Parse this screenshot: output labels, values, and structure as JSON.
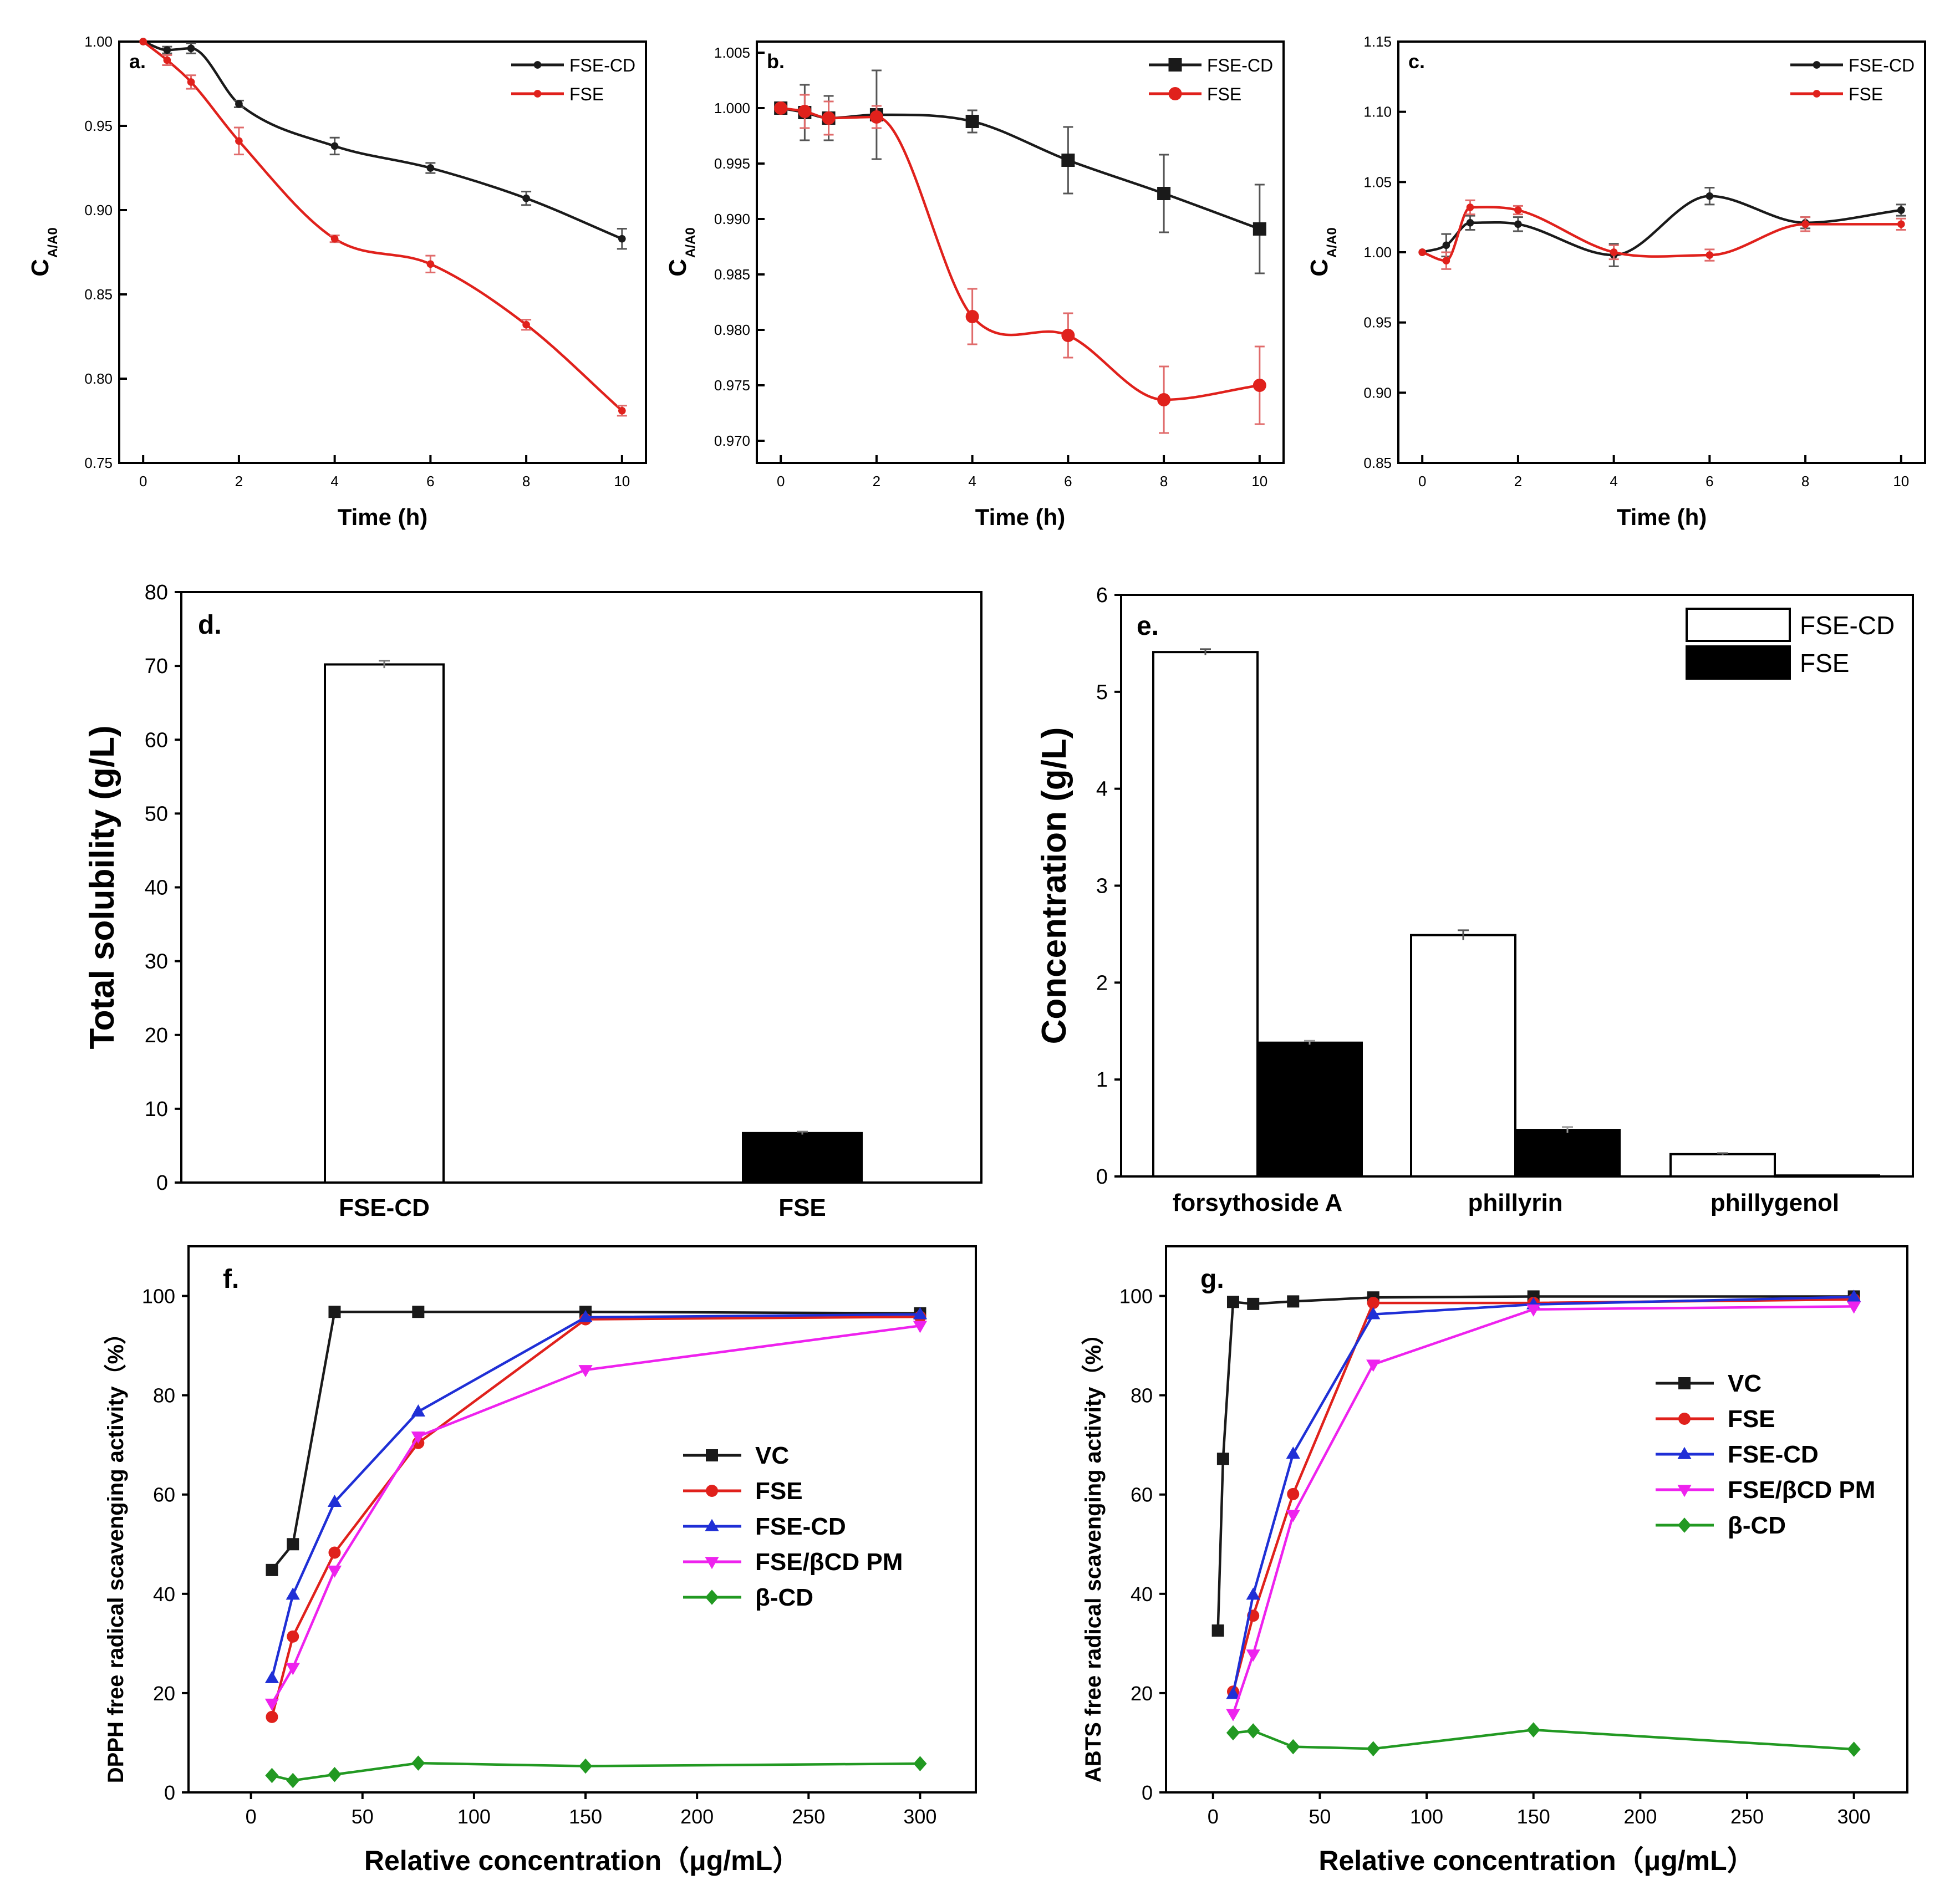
{
  "colors": {
    "black": "#1a1a1a",
    "red": "#e0211c",
    "blue": "#1f2fd6",
    "magenta": "#ee22ee",
    "green": "#229922"
  },
  "chart_data": [
    {
      "id": "a",
      "type": "line",
      "panel_label": "a.",
      "xlabel": "Time (h)",
      "ylabel_main": "C",
      "ylabel_sub": "A/A0",
      "xlim": [
        -0.5,
        10.5
      ],
      "ylim": [
        0.75,
        1.0
      ],
      "xticks": [
        0,
        2,
        4,
        6,
        8,
        10
      ],
      "yticks": [
        0.75,
        0.8,
        0.85,
        0.9,
        0.95,
        1.0
      ],
      "ytick_labels": [
        "0.75",
        "0.80",
        "0.85",
        "0.90",
        "0.95",
        "1.00"
      ],
      "legend_position": "top-right",
      "series": [
        {
          "name": "FSE-CD",
          "color": "black",
          "marker": "dot",
          "x": [
            0,
            0.5,
            1,
            2,
            4,
            6,
            8,
            10
          ],
          "y": [
            1.0,
            0.995,
            0.996,
            0.963,
            0.938,
            0.925,
            0.907,
            0.883
          ],
          "err": [
            0,
            0.002,
            0.003,
            0.002,
            0.005,
            0.003,
            0.004,
            0.006
          ]
        },
        {
          "name": "FSE",
          "color": "red",
          "marker": "dot",
          "x": [
            0,
            0.5,
            1,
            2,
            4,
            6,
            8,
            10
          ],
          "y": [
            1.0,
            0.989,
            0.976,
            0.941,
            0.883,
            0.868,
            0.832,
            0.781
          ],
          "err": [
            0,
            0.003,
            0.004,
            0.008,
            0.002,
            0.005,
            0.003,
            0.003
          ]
        }
      ]
    },
    {
      "id": "b",
      "type": "line",
      "panel_label": "b.",
      "xlabel": "Time (h)",
      "ylabel_main": "C",
      "ylabel_sub": "A/A0",
      "xlim": [
        -0.5,
        10.5
      ],
      "ylim": [
        0.968,
        1.006
      ],
      "xticks": [
        0,
        2,
        4,
        6,
        8,
        10
      ],
      "yticks": [
        0.97,
        0.975,
        0.98,
        0.985,
        0.99,
        0.995,
        1.0,
        1.005
      ],
      "ytick_labels": [
        "0.970",
        "0.975",
        "0.980",
        "0.985",
        "0.990",
        "0.995",
        "1.000",
        "1.005"
      ],
      "legend_position": "top-right",
      "series": [
        {
          "name": "FSE-CD",
          "color": "black",
          "marker": "square",
          "x": [
            0,
            0.5,
            1,
            2,
            4,
            6,
            8,
            10
          ],
          "y": [
            1.0,
            0.9996,
            0.9991,
            0.9994,
            0.9988,
            0.9953,
            0.9923,
            0.9891
          ],
          "err": [
            0,
            0.0025,
            0.002,
            0.004,
            0.001,
            0.003,
            0.0035,
            0.004
          ]
        },
        {
          "name": "FSE",
          "color": "red",
          "marker": "circle",
          "x": [
            0,
            0.5,
            1,
            2,
            4,
            6,
            8,
            10
          ],
          "y": [
            1.0,
            0.9997,
            0.9991,
            0.9992,
            0.9812,
            0.9795,
            0.9737,
            0.975
          ],
          "err": [
            0,
            0.0015,
            0.0015,
            0.001,
            0.0025,
            0.002,
            0.003,
            0.0035
          ]
        }
      ]
    },
    {
      "id": "c",
      "type": "line",
      "panel_label": "c.",
      "xlabel": "Time (h)",
      "ylabel_main": "C",
      "ylabel_sub": "A/A0",
      "xlim": [
        -0.5,
        10.5
      ],
      "ylim": [
        0.85,
        1.15
      ],
      "xticks": [
        0,
        2,
        4,
        6,
        8,
        10
      ],
      "yticks": [
        0.85,
        0.9,
        0.95,
        1.0,
        1.05,
        1.1,
        1.15
      ],
      "ytick_labels": [
        "0.85",
        "0.90",
        "0.95",
        "1.00",
        "1.05",
        "1.10",
        "1.15"
      ],
      "legend_position": "top-right",
      "series": [
        {
          "name": "FSE-CD",
          "color": "black",
          "marker": "dot",
          "x": [
            0,
            0.5,
            1,
            2,
            4,
            6,
            8,
            10
          ],
          "y": [
            1.0,
            1.005,
            1.021,
            1.02,
            0.998,
            1.04,
            1.021,
            1.03
          ],
          "err": [
            0,
            0.008,
            0.005,
            0.005,
            0.008,
            0.006,
            0.004,
            0.004
          ]
        },
        {
          "name": "FSE",
          "color": "red",
          "marker": "dot",
          "x": [
            0,
            0.5,
            1,
            2,
            4,
            6,
            8,
            10
          ],
          "y": [
            1.0,
            0.994,
            1.032,
            1.03,
            1.0,
            0.998,
            1.02,
            1.02
          ],
          "err": [
            0,
            0.006,
            0.005,
            0.003,
            0.005,
            0.004,
            0.005,
            0.004
          ]
        }
      ]
    },
    {
      "id": "d",
      "type": "bar",
      "panel_label": "d.",
      "ylabel": "Total solubility (g/L)",
      "categories": [
        "FSE-CD",
        "FSE"
      ],
      "values": [
        70.2,
        6.7
      ],
      "err": [
        0.5,
        0.2
      ],
      "fills": [
        "white",
        "black"
      ],
      "ylim": [
        0,
        80
      ],
      "yticks": [
        0,
        10,
        20,
        30,
        40,
        50,
        60,
        70,
        80
      ],
      "ytick_labels": [
        "0",
        "10",
        "20",
        "30",
        "40",
        "50",
        "60",
        "70",
        "80"
      ]
    },
    {
      "id": "e",
      "type": "bar",
      "panel_label": "e.",
      "ylabel": "Concentration (g/L)",
      "categories": [
        "forsythoside A",
        "phillyrin",
        "phillygenol"
      ],
      "ylim": [
        0,
        6
      ],
      "yticks": [
        0,
        1,
        2,
        3,
        4,
        5,
        6
      ],
      "ytick_labels": [
        "0",
        "1",
        "2",
        "3",
        "4",
        "5",
        "6"
      ],
      "legend_position": "top-right",
      "series": [
        {
          "name": "FSE-CD",
          "fill": "white",
          "values": [
            5.41,
            2.49,
            0.23
          ],
          "err": [
            0.03,
            0.05,
            0.01
          ]
        },
        {
          "name": "FSE",
          "fill": "black",
          "values": [
            1.38,
            0.48,
            0.01
          ],
          "err": [
            0.02,
            0.03,
            0.0
          ]
        }
      ]
    },
    {
      "id": "f",
      "type": "line",
      "panel_label": "f.",
      "xlabel": "Relative concentration（μg/mL）",
      "ylabel": "DPPH free radical scavenging activity（%）",
      "xlim": [
        -28,
        325
      ],
      "ylim": [
        0,
        110
      ],
      "xticks": [
        0,
        50,
        100,
        150,
        200,
        250,
        300
      ],
      "yticks": [
        0,
        20,
        40,
        60,
        80,
        100
      ],
      "legend_position": "center-right",
      "series": [
        {
          "name": "VC",
          "color": "black",
          "marker": "square",
          "x": [
            9.4,
            18.8,
            37.5,
            75,
            150,
            300
          ],
          "y": [
            44.8,
            50.0,
            96.8,
            96.8,
            96.8,
            96.5
          ]
        },
        {
          "name": "FSE",
          "color": "red",
          "marker": "circle",
          "x": [
            9.4,
            18.8,
            37.5,
            75,
            150,
            300
          ],
          "y": [
            15.2,
            31.4,
            48.3,
            70.4,
            95.3,
            95.8
          ]
        },
        {
          "name": "FSE-CD",
          "color": "blue",
          "marker": "triangle-up",
          "x": [
            9.4,
            18.8,
            37.5,
            75,
            150,
            300
          ],
          "y": [
            23.0,
            39.8,
            58.5,
            76.7,
            95.7,
            96.3
          ]
        },
        {
          "name": "FSE/βCD PM",
          "color": "magenta",
          "marker": "triangle-down",
          "x": [
            9.4,
            18.8,
            37.5,
            75,
            150,
            300
          ],
          "y": [
            17.9,
            25.1,
            44.7,
            71.7,
            85.1,
            94.0
          ]
        },
        {
          "name": "β-CD",
          "color": "green",
          "marker": "diamond",
          "x": [
            9.4,
            18.8,
            37.5,
            75,
            150,
            300
          ],
          "y": [
            3.4,
            2.4,
            3.6,
            5.9,
            5.3,
            5.8
          ]
        }
      ]
    },
    {
      "id": "g",
      "type": "line",
      "panel_label": "g.",
      "xlabel": "Relative concentration（μg/mL）",
      "ylabel": "ABTS free radical scavenging activity（%）",
      "xlim": [
        -22,
        325
      ],
      "ylim": [
        0,
        110
      ],
      "xticks": [
        0,
        50,
        100,
        150,
        200,
        250,
        300
      ],
      "yticks": [
        0,
        20,
        40,
        60,
        80,
        100
      ],
      "legend_position": "center-right",
      "series": [
        {
          "name": "VC",
          "color": "black",
          "marker": "square",
          "x": [
            2.3,
            4.7,
            9.4,
            18.8,
            37.5,
            75,
            150,
            300
          ],
          "y": [
            32.6,
            67.2,
            98.8,
            98.4,
            98.9,
            99.7,
            99.9,
            99.9
          ]
        },
        {
          "name": "FSE",
          "color": "red",
          "marker": "circle",
          "x": [
            9.4,
            18.8,
            37.5,
            75,
            150,
            300
          ],
          "y": [
            20.3,
            35.6,
            60.1,
            98.6,
            98.6,
            99.3
          ]
        },
        {
          "name": "FSE-CD",
          "color": "blue",
          "marker": "triangle-up",
          "x": [
            9.4,
            18.8,
            37.5,
            75,
            150,
            300
          ],
          "y": [
            19.8,
            39.8,
            68.2,
            96.3,
            98.3,
            99.8
          ]
        },
        {
          "name": "FSE/βCD PM",
          "color": "magenta",
          "marker": "triangle-down",
          "x": [
            9.4,
            18.8,
            37.5,
            75,
            150,
            300
          ],
          "y": [
            15.8,
            27.8,
            55.9,
            86.2,
            97.3,
            97.9
          ]
        },
        {
          "name": "β-CD",
          "color": "green",
          "marker": "diamond",
          "x": [
            9.4,
            18.8,
            37.5,
            75,
            150,
            300
          ],
          "y": [
            12.0,
            12.4,
            9.2,
            8.8,
            12.6,
            8.7
          ]
        }
      ]
    }
  ]
}
